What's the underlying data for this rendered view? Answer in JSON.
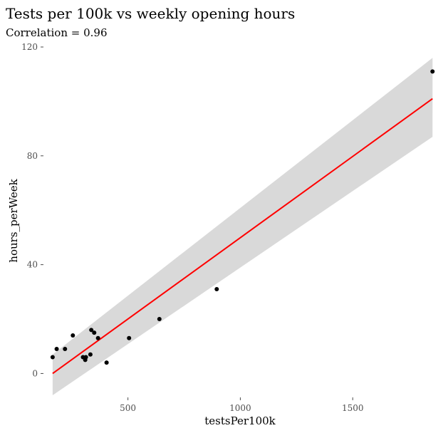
{
  "chart_data": {
    "type": "scatter",
    "title": "Tests per 100k vs weekly opening hours",
    "subtitle": "Correlation = 0.96",
    "xlabel": "testsPer100k",
    "ylabel": "hours_perWeek",
    "xlim": [
      140,
      1870
    ],
    "ylim": [
      -8,
      120
    ],
    "x_ticks": [
      500,
      1000,
      1500
    ],
    "y_ticks": [
      0,
      40,
      80,
      120
    ],
    "grid": false,
    "legend": "none",
    "points": [
      {
        "x": 165,
        "y": 6
      },
      {
        "x": 183,
        "y": 9
      },
      {
        "x": 220,
        "y": 9
      },
      {
        "x": 255,
        "y": 14
      },
      {
        "x": 300,
        "y": 6
      },
      {
        "x": 310,
        "y": 5
      },
      {
        "x": 313,
        "y": 6
      },
      {
        "x": 333,
        "y": 7
      },
      {
        "x": 337,
        "y": 16
      },
      {
        "x": 350,
        "y": 15
      },
      {
        "x": 367,
        "y": 13
      },
      {
        "x": 405,
        "y": 4
      },
      {
        "x": 505,
        "y": 13
      },
      {
        "x": 640,
        "y": 20
      },
      {
        "x": 895,
        "y": 31
      },
      {
        "x": 1855,
        "y": 111
      }
    ],
    "fit": {
      "type": "linear",
      "color": "#ff0000",
      "x": [
        165,
        1855
      ],
      "y": [
        0,
        101
      ],
      "ci_lower": [
        -8,
        87
      ],
      "ci_upper": [
        7,
        116
      ],
      "ci_color": "#d9d9d9"
    },
    "point_color": "#000000"
  }
}
